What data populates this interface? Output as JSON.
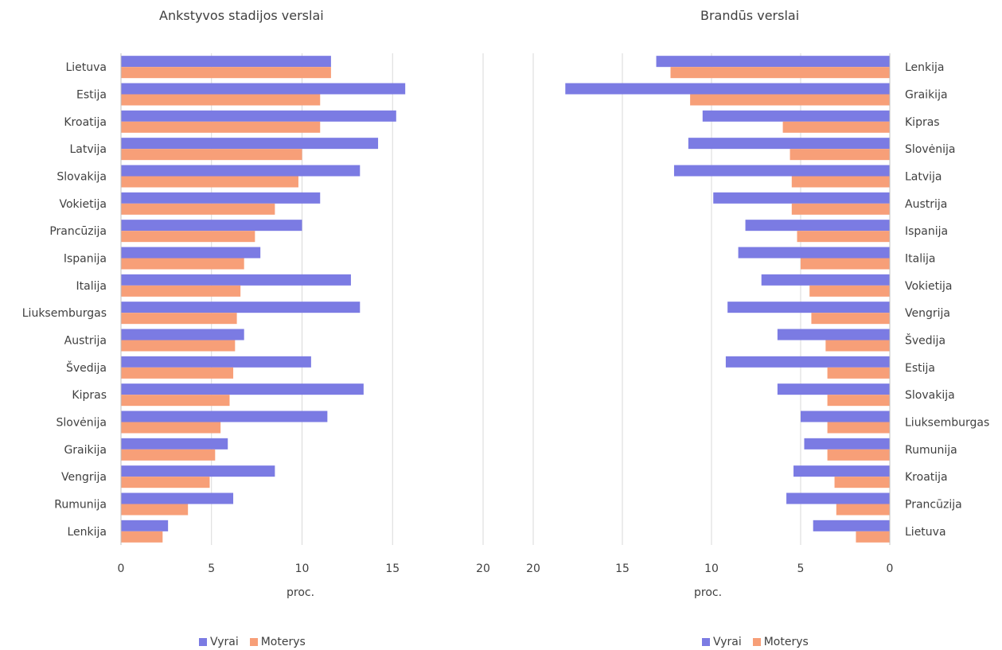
{
  "chart_data": [
    {
      "type": "bar",
      "orientation": "horizontal",
      "title": "Ankstyvos stadijos verslai",
      "xlabel": "proc.",
      "xlim": [
        0,
        20
      ],
      "xticks": [
        "0",
        "5",
        "10",
        "15",
        "20"
      ],
      "grid": "vertical",
      "legend_position": "bottom",
      "categories": [
        "Lietuva",
        "Estija",
        "Kroatija",
        "Latvija",
        "Slovakija",
        "Vokietija",
        "Prancūzija",
        "Ispanija",
        "Italija",
        "Liuksemburgas",
        "Austrija",
        "Švedija",
        "Kipras",
        "Slovėnija",
        "Graikija",
        "Vengrija",
        "Rumunija",
        "Lenkija"
      ],
      "series": [
        {
          "name": "Vyrai",
          "color": "#7b7be3",
          "values": [
            11.6,
            15.7,
            15.2,
            14.2,
            13.2,
            11.0,
            10.0,
            7.7,
            12.7,
            13.2,
            6.8,
            10.5,
            13.4,
            11.4,
            5.9,
            8.5,
            6.2,
            2.6
          ]
        },
        {
          "name": "Moterys",
          "color": "#f79f78",
          "values": [
            11.6,
            11.0,
            11.0,
            10.0,
            9.8,
            8.5,
            7.4,
            6.8,
            6.6,
            6.4,
            6.3,
            6.2,
            6.0,
            5.5,
            5.2,
            4.9,
            3.7,
            2.3
          ]
        }
      ]
    },
    {
      "type": "bar",
      "orientation": "horizontal",
      "reversed_axis": true,
      "title": "Brandūs verslai",
      "xlabel": "proc.",
      "xlim": [
        20,
        0
      ],
      "xticks": [
        "20",
        "15",
        "10",
        "5",
        "0"
      ],
      "grid": "vertical",
      "legend_position": "bottom",
      "categories": [
        "Lenkija",
        "Graikija",
        "Kipras",
        "Slovėnija",
        "Latvija",
        "Austrija",
        "Ispanija",
        "Italija",
        "Vokietija",
        "Vengrija",
        "Švedija",
        "Estija",
        "Slovakija",
        "Liuksemburgas",
        "Rumunija",
        "Kroatija",
        "Prancūzija",
        "Lietuva"
      ],
      "series": [
        {
          "name": "Vyrai",
          "color": "#7b7be3",
          "values": [
            13.1,
            18.2,
            10.5,
            11.3,
            12.1,
            9.9,
            8.1,
            8.5,
            7.2,
            9.1,
            6.3,
            9.2,
            6.3,
            5.0,
            4.8,
            5.4,
            5.8,
            4.3
          ]
        },
        {
          "name": "Moterys",
          "color": "#f79f78",
          "values": [
            12.3,
            11.2,
            6.0,
            5.6,
            5.5,
            5.5,
            5.2,
            5.0,
            4.5,
            4.4,
            3.6,
            3.5,
            3.5,
            3.5,
            3.5,
            3.1,
            3.0,
            1.9
          ]
        }
      ]
    }
  ]
}
